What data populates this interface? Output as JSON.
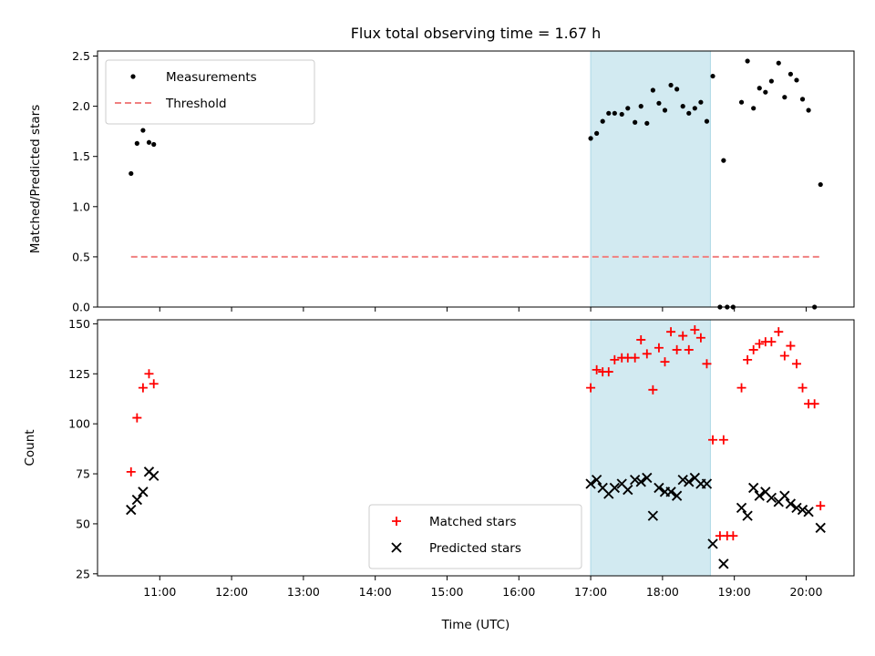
{
  "title": "Flux total observing time = 1.67 h",
  "chart_data": [
    {
      "type": "scatter",
      "ylabel": "Matched/Predicted stars",
      "ylim": [
        0,
        2.55
      ],
      "yticks": [
        "0.0",
        "0.5",
        "1.0",
        "1.5",
        "2.0",
        "2.5"
      ],
      "legend_placement": "top-left",
      "series": [
        {
          "name": "Measurements",
          "marker": "dot",
          "color": "#000000",
          "points": [
            [
              "10:36",
              1.33
            ],
            [
              "10:41",
              1.63
            ],
            [
              "10:46",
              1.76
            ],
            [
              "10:51",
              1.64
            ],
            [
              "10:55",
              1.62
            ],
            [
              "17:00",
              1.68
            ],
            [
              "17:05",
              1.73
            ],
            [
              "17:10",
              1.85
            ],
            [
              "17:15",
              1.93
            ],
            [
              "17:20",
              1.93
            ],
            [
              "17:26",
              1.92
            ],
            [
              "17:31",
              1.98
            ],
            [
              "17:37",
              1.84
            ],
            [
              "17:42",
              2.0
            ],
            [
              "17:47",
              1.83
            ],
            [
              "17:52",
              2.16
            ],
            [
              "17:57",
              2.03
            ],
            [
              "18:02",
              1.96
            ],
            [
              "18:07",
              2.21
            ],
            [
              "18:12",
              2.17
            ],
            [
              "18:17",
              2.0
            ],
            [
              "18:22",
              1.93
            ],
            [
              "18:27",
              1.98
            ],
            [
              "18:32",
              2.04
            ],
            [
              "18:37",
              1.85
            ],
            [
              "18:42",
              2.3
            ],
            [
              "18:51",
              1.46
            ],
            [
              "18:48",
              0.0
            ],
            [
              "18:54",
              0.0
            ],
            [
              "18:59",
              0.0
            ],
            [
              "19:06",
              2.04
            ],
            [
              "19:11",
              2.45
            ],
            [
              "19:16",
              1.98
            ],
            [
              "19:21",
              2.18
            ],
            [
              "19:26",
              2.14
            ],
            [
              "19:31",
              2.25
            ],
            [
              "19:37",
              2.43
            ],
            [
              "19:42",
              2.09
            ],
            [
              "19:47",
              2.32
            ],
            [
              "19:52",
              2.26
            ],
            [
              "19:57",
              2.07
            ],
            [
              "20:02",
              1.96
            ],
            [
              "20:07",
              0.0
            ],
            [
              "20:12",
              1.22
            ]
          ]
        },
        {
          "name": "Threshold",
          "marker": "dashed-line",
          "color": "#f08080",
          "points": [
            [
              "10:36",
              0.5
            ],
            [
              "20:12",
              0.5
            ]
          ]
        }
      ]
    },
    {
      "type": "scatter",
      "xlabel": "Time (UTC)",
      "ylabel": "Count",
      "ylim": [
        24,
        152
      ],
      "yticks": [
        "25",
        "50",
        "75",
        "100",
        "125",
        "150"
      ],
      "xticks": [
        "11:00",
        "12:00",
        "13:00",
        "14:00",
        "15:00",
        "16:00",
        "17:00",
        "18:00",
        "19:00",
        "20:00"
      ],
      "legend_placement": "bottom-center",
      "series": [
        {
          "name": "Matched stars",
          "marker": "plus",
          "color": "#ff0000",
          "points": [
            [
              "10:36",
              76
            ],
            [
              "10:41",
              103
            ],
            [
              "10:46",
              118
            ],
            [
              "10:51",
              125
            ],
            [
              "10:55",
              120
            ],
            [
              "17:00",
              118
            ],
            [
              "17:05",
              127
            ],
            [
              "17:10",
              126
            ],
            [
              "17:15",
              126
            ],
            [
              "17:20",
              132
            ],
            [
              "17:26",
              133
            ],
            [
              "17:31",
              133
            ],
            [
              "17:37",
              133
            ],
            [
              "17:42",
              142
            ],
            [
              "17:47",
              135
            ],
            [
              "17:52",
              117
            ],
            [
              "17:57",
              138
            ],
            [
              "18:02",
              131
            ],
            [
              "18:07",
              146
            ],
            [
              "18:12",
              137
            ],
            [
              "18:17",
              144
            ],
            [
              "18:22",
              137
            ],
            [
              "18:27",
              147
            ],
            [
              "18:32",
              143
            ],
            [
              "18:37",
              130
            ],
            [
              "18:42",
              92
            ],
            [
              "18:51",
              92
            ],
            [
              "18:48",
              44
            ],
            [
              "18:54",
              44
            ],
            [
              "18:59",
              44
            ],
            [
              "19:06",
              118
            ],
            [
              "19:11",
              132
            ],
            [
              "19:16",
              137
            ],
            [
              "19:21",
              140
            ],
            [
              "19:26",
              141
            ],
            [
              "19:31",
              141
            ],
            [
              "19:37",
              146
            ],
            [
              "19:42",
              134
            ],
            [
              "19:47",
              139
            ],
            [
              "19:52",
              130
            ],
            [
              "19:57",
              118
            ],
            [
              "20:02",
              110
            ],
            [
              "20:07",
              110
            ],
            [
              "20:12",
              59
            ]
          ]
        },
        {
          "name": "Predicted stars",
          "marker": "x",
          "color": "#000000",
          "points": [
            [
              "10:36",
              57
            ],
            [
              "10:41",
              62
            ],
            [
              "10:46",
              66
            ],
            [
              "10:51",
              76
            ],
            [
              "10:55",
              74
            ],
            [
              "17:00",
              70
            ],
            [
              "17:05",
              72
            ],
            [
              "17:10",
              68
            ],
            [
              "17:15",
              65
            ],
            [
              "17:20",
              68
            ],
            [
              "17:26",
              70
            ],
            [
              "17:31",
              67
            ],
            [
              "17:37",
              72
            ],
            [
              "17:42",
              71
            ],
            [
              "17:47",
              73
            ],
            [
              "17:52",
              54
            ],
            [
              "17:57",
              68
            ],
            [
              "18:02",
              66
            ],
            [
              "18:07",
              66
            ],
            [
              "18:12",
              64
            ],
            [
              "18:17",
              72
            ],
            [
              "18:22",
              71
            ],
            [
              "18:27",
              73
            ],
            [
              "18:32",
              70
            ],
            [
              "18:37",
              70
            ],
            [
              "18:42",
              40
            ],
            [
              "18:51",
              30
            ],
            [
              "19:06",
              58
            ],
            [
              "19:11",
              54
            ],
            [
              "19:16",
              68
            ],
            [
              "19:21",
              64
            ],
            [
              "19:26",
              66
            ],
            [
              "19:31",
              63
            ],
            [
              "19:37",
              61
            ],
            [
              "19:42",
              64
            ],
            [
              "19:47",
              60
            ],
            [
              "19:52",
              58
            ],
            [
              "19:57",
              57
            ],
            [
              "20:02",
              56
            ],
            [
              "20:12",
              48
            ]
          ]
        }
      ]
    }
  ],
  "highlight_span": {
    "start": "17:00",
    "end": "18:40",
    "color": "#add8e6"
  },
  "x_range": [
    "10:08",
    "20:40"
  ]
}
